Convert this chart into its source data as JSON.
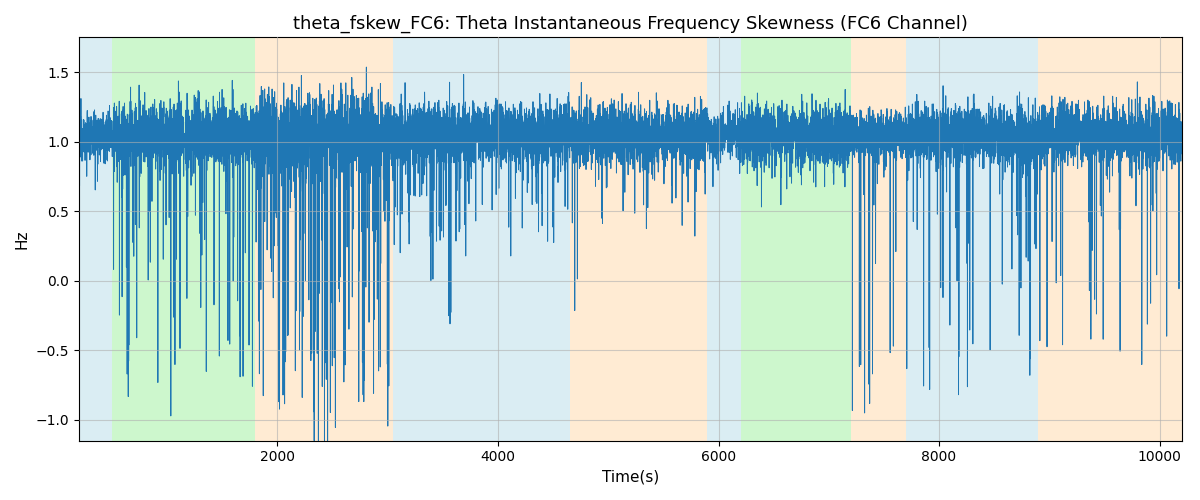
{
  "title": "theta_fskew_FC6: Theta Instantaneous Frequency Skewness (FC6 Channel)",
  "xlabel": "Time(s)",
  "ylabel": "Hz",
  "xlim": [
    200,
    10200
  ],
  "ylim": [
    -1.15,
    1.75
  ],
  "line_color": "#1f77b4",
  "line_width": 0.7,
  "bg_regions": [
    {
      "xstart": 200,
      "xend": 500,
      "color": "#add8e6",
      "alpha": 0.45
    },
    {
      "xstart": 500,
      "xend": 1800,
      "color": "#90ee90",
      "alpha": 0.45
    },
    {
      "xstart": 1800,
      "xend": 3050,
      "color": "#ffd8a8",
      "alpha": 0.5
    },
    {
      "xstart": 3050,
      "xend": 3700,
      "color": "#add8e6",
      "alpha": 0.45
    },
    {
      "xstart": 3700,
      "xend": 4650,
      "color": "#add8e6",
      "alpha": 0.45
    },
    {
      "xstart": 4650,
      "xend": 5900,
      "color": "#ffd8a8",
      "alpha": 0.5
    },
    {
      "xstart": 5900,
      "xend": 6200,
      "color": "#add8e6",
      "alpha": 0.45
    },
    {
      "xstart": 6200,
      "xend": 7200,
      "color": "#90ee90",
      "alpha": 0.45
    },
    {
      "xstart": 7200,
      "xend": 7700,
      "color": "#ffd8a8",
      "alpha": 0.5
    },
    {
      "xstart": 7700,
      "xend": 8900,
      "color": "#add8e6",
      "alpha": 0.45
    },
    {
      "xstart": 8900,
      "xend": 10200,
      "color": "#ffd8a8",
      "alpha": 0.5
    }
  ],
  "yticks": [
    -1.0,
    -0.5,
    0.0,
    0.5,
    1.0,
    1.5
  ],
  "xticks": [
    2000,
    4000,
    6000,
    8000,
    10000
  ],
  "title_fontsize": 13,
  "axis_label_fontsize": 11,
  "grid_color": "#b0b0b0",
  "grid_alpha": 0.6
}
